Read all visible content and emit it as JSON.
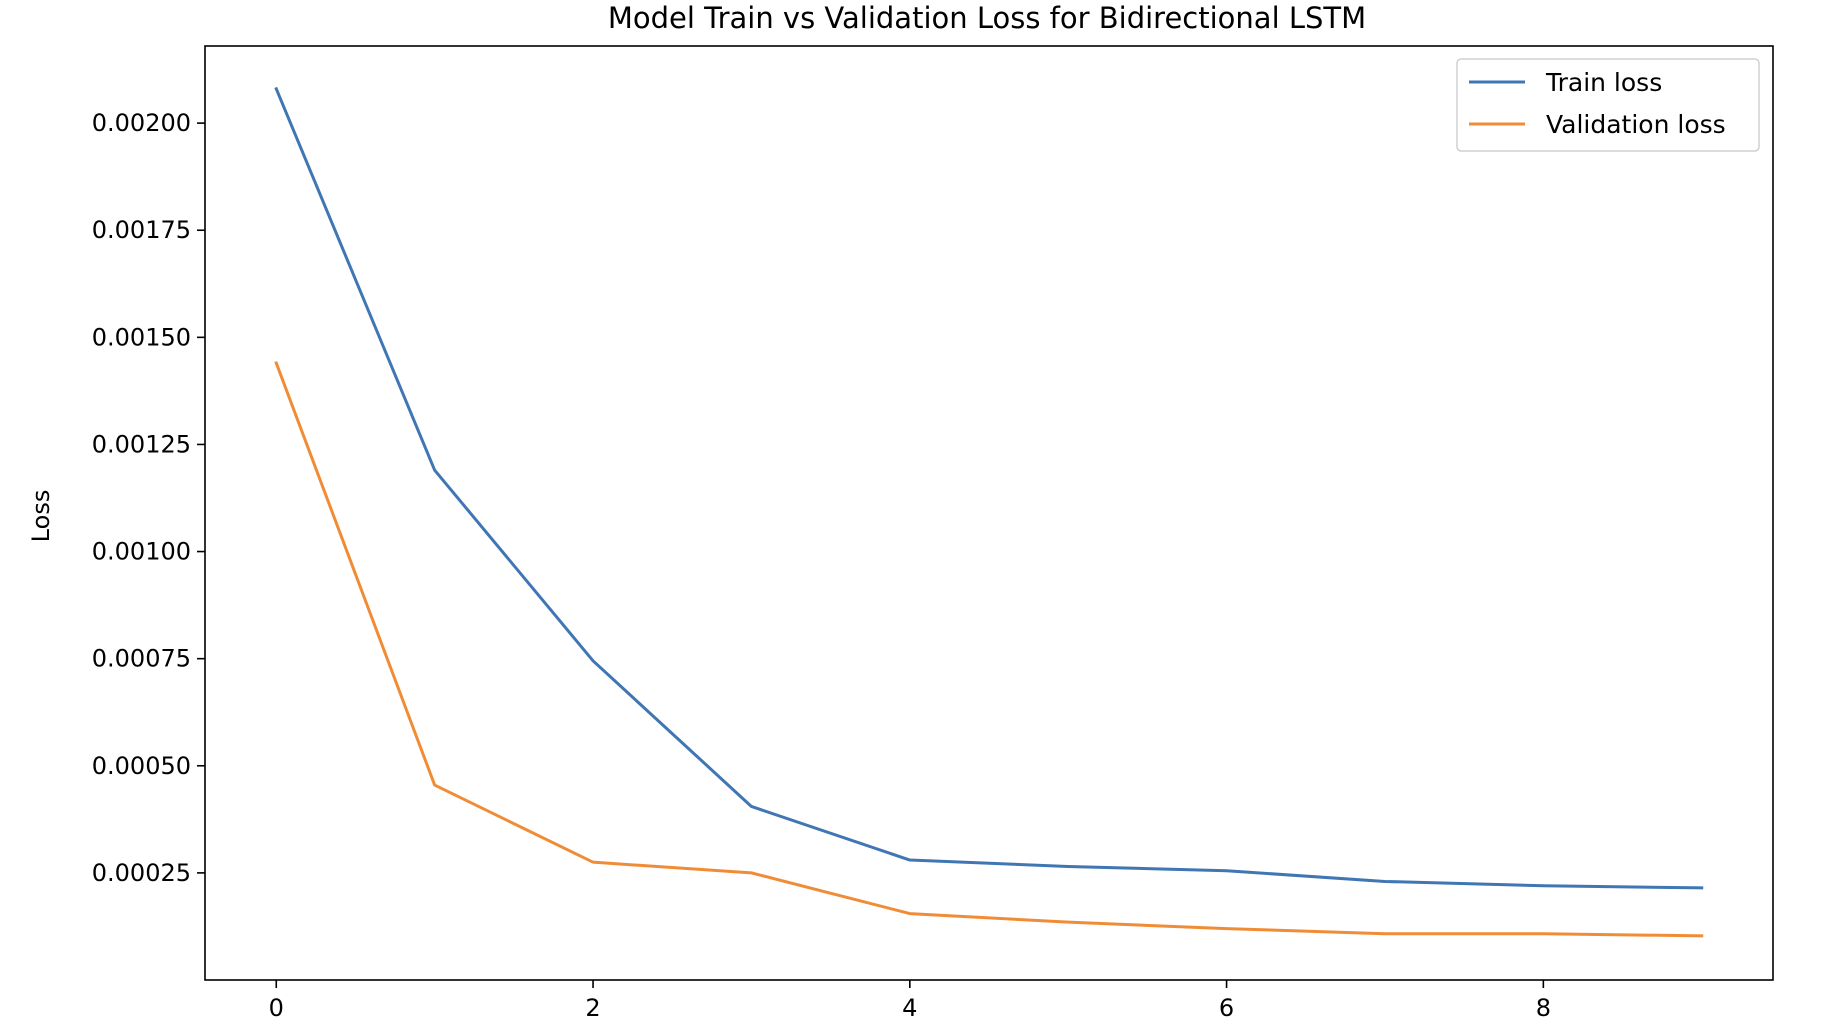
{
  "chart_data": {
    "type": "line",
    "title": "Model Train vs Validation Loss for Bidirectional LSTM",
    "xlabel": "",
    "ylabel": "Loss",
    "x": [
      0,
      1,
      2,
      3,
      4,
      5,
      6,
      7,
      8,
      9
    ],
    "xlim": [
      -0.45,
      9.45
    ],
    "ylim": [
      0.0,
      0.00218
    ],
    "xticks": [
      0,
      2,
      4,
      6,
      8
    ],
    "xtick_labels": [
      "0",
      "2",
      "4",
      "6",
      "8"
    ],
    "yticks": [
      0.00025,
      0.0005,
      0.00075,
      0.001,
      0.00125,
      0.0015,
      0.00175,
      0.002
    ],
    "ytick_labels": [
      "0.00025",
      "0.00050",
      "0.00075",
      "0.00100",
      "0.00125",
      "0.00150",
      "0.00175",
      "0.00200"
    ],
    "grid": false,
    "legend_position": "top-right",
    "series": [
      {
        "name": "Train loss",
        "color": "#3f76b3",
        "values": [
          0.00208,
          0.00119,
          0.000745,
          0.000405,
          0.00028,
          0.000265,
          0.000255,
          0.00023,
          0.00022,
          0.000215
        ]
      },
      {
        "name": "Validation loss",
        "color": "#f08c36",
        "values": [
          0.00144,
          0.000455,
          0.000275,
          0.00025,
          0.000155,
          0.000135,
          0.00012,
          0.000108,
          0.000108,
          0.000103
        ]
      }
    ]
  }
}
